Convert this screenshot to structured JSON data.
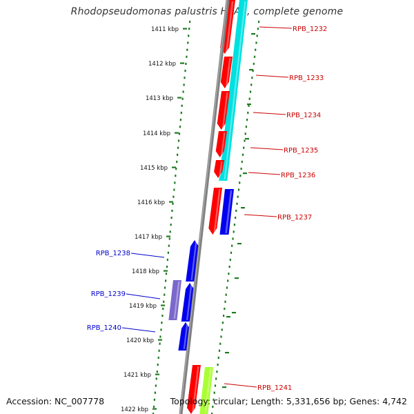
{
  "title": "Rhodopseudomonas palustris HaA2, complete genome",
  "footer": {
    "accession": "Accession: NC_007778",
    "topology": "Topology: circular; Length: 5,331,656 bp; Genes: 4,742"
  },
  "colors": {
    "backbone": "#808080",
    "tick": "#1f7a1f",
    "label_red": "#cc0000",
    "label_blue": "#0000cc",
    "gene_red": "#ff0000",
    "gene_blue": "#0000ee",
    "gene_cyan": "#00e0e0",
    "gene_purple": "#7b68cc",
    "gene_lime": "#aaff33"
  },
  "kbp_labels": [
    "1411 kbp",
    "1412 kbp",
    "1413 kbp",
    "1414 kbp",
    "1415 kbp",
    "1416 kbp",
    "1417 kbp",
    "1418 kbp",
    "1419 kbp",
    "1420 kbp",
    "1421 kbp",
    "1422 kbp"
  ],
  "gene_labels": {
    "right": [
      "RPB_1232",
      "RPB_1233",
      "RPB_1234",
      "RPB_1235",
      "RPB_1236",
      "RPB_1237",
      "RPB_1241"
    ],
    "left": [
      "RPB_1238",
      "RPB_1239",
      "RPB_1240"
    ]
  }
}
